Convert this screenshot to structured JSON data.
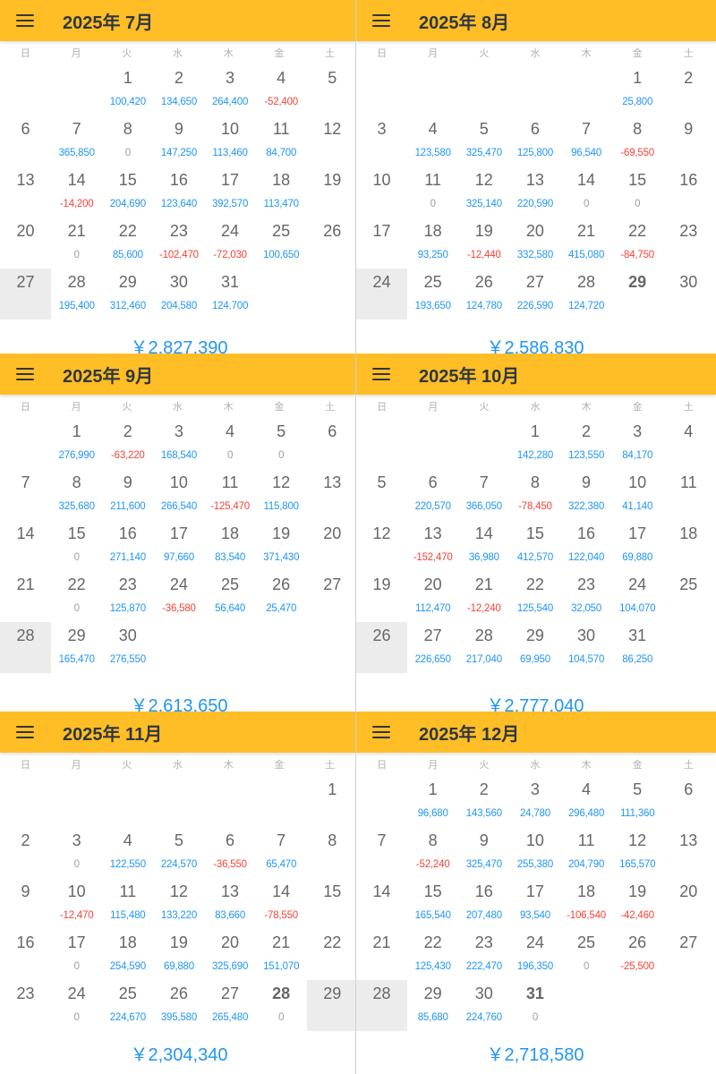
{
  "colors": {
    "header": "#FFBE26",
    "positive": "#2196F3",
    "negative": "#F44336",
    "zero": "#9e9e9e",
    "selected": "#ececec"
  },
  "icons": {
    "menu": "hamburger-menu-icon"
  },
  "weekdays": [
    "日",
    "月",
    "火",
    "水",
    "木",
    "金",
    "土"
  ],
  "months": [
    {
      "title": "2025年 7月",
      "total": "￥2,827,390",
      "offset": 2,
      "selected": "27",
      "bold": "",
      "days": [
        [
          "1",
          "100,420"
        ],
        [
          "2",
          "134,650"
        ],
        [
          "3",
          "264,400"
        ],
        [
          "4",
          "-52,400"
        ],
        [
          "5",
          ""
        ],
        [
          "6",
          ""
        ],
        [
          "7",
          "365,850"
        ],
        [
          "8",
          "0"
        ],
        [
          "9",
          "147,250"
        ],
        [
          "10",
          "113,460"
        ],
        [
          "11",
          "84,700"
        ],
        [
          "12",
          ""
        ],
        [
          "13",
          ""
        ],
        [
          "14",
          "-14,200"
        ],
        [
          "15",
          "204,690"
        ],
        [
          "16",
          "123,640"
        ],
        [
          "17",
          "392,570"
        ],
        [
          "18",
          "113,470"
        ],
        [
          "19",
          ""
        ],
        [
          "20",
          ""
        ],
        [
          "21",
          "0"
        ],
        [
          "22",
          "85,600"
        ],
        [
          "23",
          "-102,470"
        ],
        [
          "24",
          "-72,030"
        ],
        [
          "25",
          "100,650"
        ],
        [
          "26",
          ""
        ],
        [
          "27",
          ""
        ],
        [
          "28",
          "195,400"
        ],
        [
          "29",
          "312,460"
        ],
        [
          "30",
          "204,580"
        ],
        [
          "31",
          "124,700"
        ]
      ]
    },
    {
      "title": "2025年 8月",
      "total": "￥2,586,830",
      "offset": 5,
      "selected": "24",
      "bold": "29",
      "days": [
        [
          "1",
          "25,800"
        ],
        [
          "2",
          ""
        ],
        [
          "3",
          ""
        ],
        [
          "4",
          "123,580"
        ],
        [
          "5",
          "325,470"
        ],
        [
          "6",
          "125,800"
        ],
        [
          "7",
          "96,540"
        ],
        [
          "8",
          "-69,550"
        ],
        [
          "9",
          ""
        ],
        [
          "10",
          ""
        ],
        [
          "11",
          "0"
        ],
        [
          "12",
          "325,140"
        ],
        [
          "13",
          "220,590"
        ],
        [
          "14",
          "0"
        ],
        [
          "15",
          "0"
        ],
        [
          "16",
          ""
        ],
        [
          "17",
          ""
        ],
        [
          "18",
          "93,250"
        ],
        [
          "19",
          "-12,440"
        ],
        [
          "20",
          "332,580"
        ],
        [
          "21",
          "415,080"
        ],
        [
          "22",
          "-84,750"
        ],
        [
          "23",
          ""
        ],
        [
          "24",
          ""
        ],
        [
          "25",
          "193,650"
        ],
        [
          "26",
          "124,780"
        ],
        [
          "27",
          "226,590"
        ],
        [
          "28",
          "124,720"
        ],
        [
          "29",
          ""
        ],
        [
          "30",
          ""
        ]
      ]
    },
    {
      "title": "2025年 9月",
      "total": "￥2,613,650",
      "offset": 1,
      "selected": "28",
      "bold": "",
      "days": [
        [
          "1",
          "276,990"
        ],
        [
          "2",
          "-63,220"
        ],
        [
          "3",
          "168,540"
        ],
        [
          "4",
          "0"
        ],
        [
          "5",
          "0"
        ],
        [
          "6",
          ""
        ],
        [
          "7",
          ""
        ],
        [
          "8",
          "325,680"
        ],
        [
          "9",
          "211,600"
        ],
        [
          "10",
          "266,540"
        ],
        [
          "11",
          "-125,470"
        ],
        [
          "12",
          "115,800"
        ],
        [
          "13",
          ""
        ],
        [
          "14",
          ""
        ],
        [
          "15",
          "0"
        ],
        [
          "16",
          "271,140"
        ],
        [
          "17",
          "97,660"
        ],
        [
          "18",
          "83,540"
        ],
        [
          "19",
          "371,430"
        ],
        [
          "20",
          ""
        ],
        [
          "21",
          ""
        ],
        [
          "22",
          "0"
        ],
        [
          "23",
          "125,870"
        ],
        [
          "24",
          "-36,580"
        ],
        [
          "25",
          "56,640"
        ],
        [
          "26",
          "25,470"
        ],
        [
          "27",
          ""
        ],
        [
          "28",
          ""
        ],
        [
          "29",
          "165,470"
        ],
        [
          "30",
          "276,550"
        ]
      ]
    },
    {
      "title": "2025年 10月",
      "total": "￥2,777,040",
      "offset": 3,
      "selected": "26",
      "bold": "",
      "days": [
        [
          "1",
          "142,280"
        ],
        [
          "2",
          "123,550"
        ],
        [
          "3",
          "84,170"
        ],
        [
          "4",
          ""
        ],
        [
          "5",
          ""
        ],
        [
          "6",
          "220,570"
        ],
        [
          "7",
          "366,050"
        ],
        [
          "8",
          "-78,450"
        ],
        [
          "9",
          "322,380"
        ],
        [
          "10",
          "41,140"
        ],
        [
          "11",
          ""
        ],
        [
          "12",
          ""
        ],
        [
          "13",
          "-152,470"
        ],
        [
          "14",
          "36,980"
        ],
        [
          "15",
          "412,570"
        ],
        [
          "16",
          "122,040"
        ],
        [
          "17",
          "69,880"
        ],
        [
          "18",
          ""
        ],
        [
          "19",
          ""
        ],
        [
          "20",
          "112,470"
        ],
        [
          "21",
          "-12,240"
        ],
        [
          "22",
          "125,540"
        ],
        [
          "23",
          "32,050"
        ],
        [
          "24",
          "104,070"
        ],
        [
          "25",
          ""
        ],
        [
          "26",
          ""
        ],
        [
          "27",
          "226,650"
        ],
        [
          "28",
          "217,040"
        ],
        [
          "29",
          "69,950"
        ],
        [
          "30",
          "104,570"
        ],
        [
          "31",
          "86,250"
        ]
      ]
    },
    {
      "title": "2025年 11月",
      "total": "￥2,304,340",
      "offset": 6,
      "selected": "29",
      "bold": "28",
      "days": [
        [
          "1",
          ""
        ],
        [
          "2",
          ""
        ],
        [
          "3",
          "0"
        ],
        [
          "4",
          "122,550"
        ],
        [
          "5",
          "224,570"
        ],
        [
          "6",
          "-36,550"
        ],
        [
          "7",
          "65,470"
        ],
        [
          "8",
          ""
        ],
        [
          "9",
          ""
        ],
        [
          "10",
          "-12,470"
        ],
        [
          "11",
          "115,480"
        ],
        [
          "12",
          "133,220"
        ],
        [
          "13",
          "83,660"
        ],
        [
          "14",
          "-78,550"
        ],
        [
          "15",
          ""
        ],
        [
          "16",
          ""
        ],
        [
          "17",
          "0"
        ],
        [
          "18",
          "254,590"
        ],
        [
          "19",
          "69,880"
        ],
        [
          "20",
          "325,690"
        ],
        [
          "21",
          "151,070"
        ],
        [
          "22",
          ""
        ],
        [
          "23",
          ""
        ],
        [
          "24",
          "0"
        ],
        [
          "25",
          "224,670"
        ],
        [
          "26",
          "395,580"
        ],
        [
          "27",
          "265,480"
        ],
        [
          "28",
          "0"
        ],
        [
          "29",
          ""
        ]
      ]
    },
    {
      "title": "2025年 12月",
      "total": "￥2,718,580",
      "offset": 1,
      "selected": "28",
      "bold": "31",
      "days": [
        [
          "1",
          "96,680"
        ],
        [
          "2",
          "143,560"
        ],
        [
          "3",
          "24,780"
        ],
        [
          "4",
          "296,480"
        ],
        [
          "5",
          "111,360"
        ],
        [
          "6",
          ""
        ],
        [
          "7",
          ""
        ],
        [
          "8",
          "-52,240"
        ],
        [
          "9",
          "325,470"
        ],
        [
          "10",
          "255,380"
        ],
        [
          "11",
          "204,790"
        ],
        [
          "12",
          "165,570"
        ],
        [
          "13",
          ""
        ],
        [
          "14",
          ""
        ],
        [
          "15",
          "165,540"
        ],
        [
          "16",
          "207,480"
        ],
        [
          "17",
          "93,540"
        ],
        [
          "18",
          "-106,540"
        ],
        [
          "19",
          "-42,460"
        ],
        [
          "20",
          ""
        ],
        [
          "21",
          ""
        ],
        [
          "22",
          "125,430"
        ],
        [
          "23",
          "222,470"
        ],
        [
          "24",
          "196,350"
        ],
        [
          "25",
          "0"
        ],
        [
          "26",
          "-25,500"
        ],
        [
          "27",
          ""
        ],
        [
          "28",
          ""
        ],
        [
          "29",
          "85,680"
        ],
        [
          "30",
          "224,760"
        ],
        [
          "31",
          "0"
        ]
      ]
    }
  ]
}
